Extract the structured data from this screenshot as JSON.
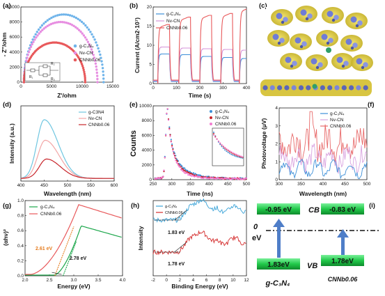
{
  "chart_data": [
    {
      "panel": "(a)",
      "type": "scatter",
      "xlabel": "Z'/ohm",
      "ylabel": "- Z''/ohm",
      "xlim": [
        0,
        15000
      ],
      "ylim": [
        0,
        11000
      ],
      "xticks": [
        "0",
        "5000",
        "10000",
        "15000"
      ],
      "yticks": [
        "0",
        "2000",
        "4000",
        "6000",
        "8000",
        "10000"
      ],
      "series": [
        {
          "name": "g-C₃N₄",
          "color": "#6fb4ea",
          "diameter": 13000,
          "peak": 9900
        },
        {
          "name": "Nv-CN",
          "color": "#e78ee1",
          "diameter": 12000,
          "peak": 8800
        },
        {
          "name": "CNNb0.06",
          "color": "#e8585a",
          "diameter": 10000,
          "peak": 5800
        }
      ],
      "inset_labels": [
        "R₁",
        "R₂",
        "R₃"
      ]
    },
    {
      "panel": "(b)",
      "type": "line",
      "xlabel": "Time (s)",
      "ylabel": "Current (A/cm2·10⁷)",
      "xlim": [
        0,
        400
      ],
      "ylim": [
        0,
        22
      ],
      "xticks": [
        "0",
        "100",
        "200",
        "300",
        "400"
      ],
      "yticks": [
        "0",
        "5",
        "10",
        "15",
        "20"
      ],
      "on_intervals": [
        [
          20,
          70
        ],
        [
          110,
          160
        ],
        [
          200,
          250
        ],
        [
          290,
          340
        ],
        [
          370,
          400
        ]
      ],
      "series": [
        {
          "name": "g-C₃N₄",
          "color": "#3d8fd8",
          "on_values": [
            8.5,
            8.3,
            7.8,
            7.5,
            7.2
          ]
        },
        {
          "name": "Nv-CN",
          "color": "#d493d8",
          "on_values": [
            10.5,
            10.2,
            10.0,
            9.8,
            9.6
          ]
        },
        {
          "name": "CNNb0.06",
          "color": "#e8585a",
          "on_values": [
            16.0,
            18.0,
            18.5,
            19.0,
            20.5
          ]
        }
      ]
    },
    {
      "panel": "(c)",
      "type": "image",
      "description_colors": [
        "#e6d04a",
        "#7c86d8",
        "#6a5a9a"
      ]
    },
    {
      "panel": "(d)",
      "type": "line",
      "xlabel": "Wavelength (nm)",
      "ylabel": "Intensity (a.u.)",
      "xlim": [
        400,
        600
      ],
      "xticks": [
        "400",
        "450",
        "500",
        "550",
        "600"
      ],
      "series": [
        {
          "name": "g-C3N4",
          "color": "#6fc6e0",
          "peak_x": 450,
          "peak": 1.0
        },
        {
          "name": "Nv-CN",
          "color": "#f2a6a6",
          "peak_x": 452,
          "peak": 0.65
        },
        {
          "name": "CNNb0.06",
          "color": "#c8242a",
          "peak_x": 455,
          "peak": 0.33
        }
      ]
    },
    {
      "panel": "(e)",
      "type": "scatter",
      "xlabel": "Time (ns)",
      "ylabel": "Counts",
      "xlim": [
        250,
        500
      ],
      "ylim": [
        0,
        10000
      ],
      "xticks": [
        "250",
        "300",
        "350",
        "400",
        "450",
        "500"
      ],
      "yticks": [
        "0",
        "2000",
        "4000",
        "6000",
        "8000",
        "10000"
      ],
      "series": [
        {
          "name": "g-C₃N₄",
          "color": "#3d8fd8",
          "decay": 38
        },
        {
          "name": "Nv-CN",
          "color": "#c8242a",
          "decay": 33
        },
        {
          "name": "CNNb0.06",
          "color": "#f27bd0",
          "decay": 28
        }
      ]
    },
    {
      "panel": "(f)",
      "type": "line",
      "xlabel": "Wavelength (nm)",
      "ylabel": "Photovoltage (μV)",
      "xlim": [
        300,
        500
      ],
      "ylim": [
        0,
        4
      ],
      "xticks": [
        "300",
        "350",
        "400",
        "450",
        "500"
      ],
      "yticks": [
        "0",
        "1",
        "2",
        "3",
        "4"
      ],
      "series": [
        {
          "name": "g-C₃N₄",
          "color": "#3d8fd8",
          "base": 0.6
        },
        {
          "name": "Nv-CN",
          "color": "#d9a3e0",
          "base": 1.2
        },
        {
          "name": "CNNb0.06",
          "color": "#e86a6a",
          "base": 2.1
        }
      ]
    },
    {
      "panel": "(g)",
      "type": "line",
      "xlabel": "Energy (eV)",
      "ylabel": "(αhν)²",
      "xlim": [
        2.0,
        4.0
      ],
      "ylim": [
        0,
        1.1
      ],
      "xticks": [
        "2.0",
        "2.5",
        "3.0",
        "3.5",
        "4.0"
      ],
      "yticks": [
        "0.0",
        "0.2",
        "0.4",
        "0.6",
        "0.8",
        "1.0"
      ],
      "series": [
        {
          "name": "g-C₃N₄",
          "color": "#1aa64a",
          "edge": 2.78
        },
        {
          "name": "CNNb0.06",
          "color": "#e8585a",
          "edge": 2.61
        }
      ],
      "annotations": [
        "2.61 eV",
        "2.78 eV"
      ]
    },
    {
      "panel": "(h)",
      "type": "line",
      "xlabel": "Binding Energy (eV)",
      "ylabel": "Intensity",
      "xlim": [
        -2,
        12
      ],
      "xticks": [
        "-2",
        "0",
        "2",
        "4",
        "6",
        "8",
        "10",
        "12"
      ],
      "series": [
        {
          "name": "g-C₃N₄",
          "color": "#3aa3d8",
          "vb": 1.83
        },
        {
          "name": "CNNb0.06",
          "color": "#d42a2a",
          "vb": 1.78
        }
      ],
      "annotations": [
        "1.83 eV",
        "1.78 eV"
      ]
    },
    {
      "panel": "(i)",
      "type": "diagram",
      "labels": {
        "cb": "CB",
        "vb": "VB",
        "zero": "0",
        "ev": "eV"
      },
      "materials": [
        {
          "name": "g-C₃N₄",
          "cb": "-0.95 eV",
          "vb": "1.83eV"
        },
        {
          "name": "CNNb0.06",
          "cb": "-0.83 eV",
          "vb": "1.78eV"
        }
      ]
    }
  ]
}
